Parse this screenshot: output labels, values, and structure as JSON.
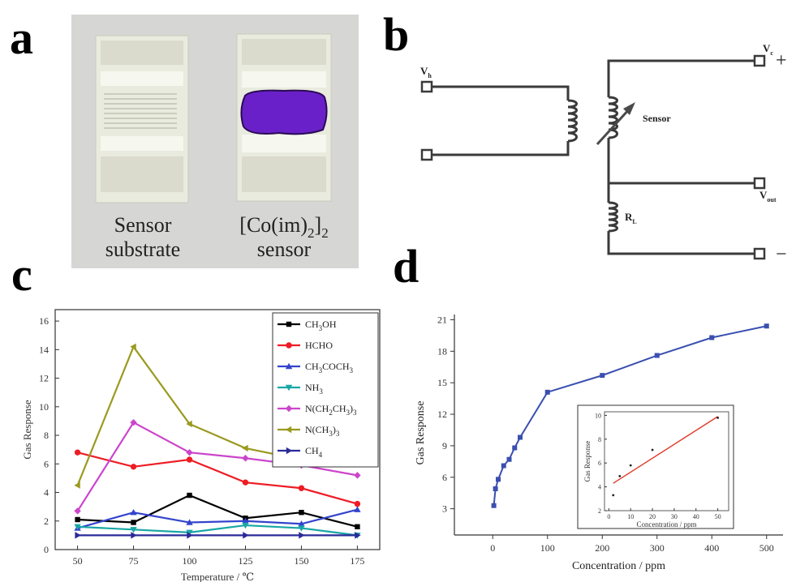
{
  "panels": {
    "a": "a",
    "b": "b",
    "c": "c",
    "d": "d"
  },
  "photo": {
    "left_caption": [
      "Sensor",
      "substrate"
    ],
    "right_caption_main": "[Co(im)",
    "right_caption_sub1": "2",
    "right_caption_close": "]",
    "right_caption_sub2": "2",
    "right_caption_line2": "sensor",
    "film_color": "#6a20c8"
  },
  "circuit": {
    "vh_label": "V",
    "vh_sub": "h",
    "vc_label": "V",
    "vc_sub": "c",
    "plus": "+",
    "minus": "−",
    "sensor_label": "Sensor",
    "vout_label": "V",
    "vout_sub": "out",
    "rl_label": "R",
    "rl_sub": "L"
  },
  "chart_data": [
    {
      "type": "line",
      "xlabel": "Temperature / ℃",
      "ylabel": "Gas Response",
      "xlim": [
        40,
        185
      ],
      "ylim": [
        0,
        16.8
      ],
      "x_ticks": [
        50,
        75,
        100,
        125,
        150,
        175
      ],
      "y_ticks": [
        0,
        2,
        4,
        6,
        8,
        10,
        12,
        14,
        16
      ],
      "legend_position": "top-right",
      "series": [
        {
          "name": "CH3OH",
          "color": "#000000",
          "marker": "square",
          "x": [
            50,
            75,
            100,
            125,
            150,
            175
          ],
          "values": [
            2.1,
            1.9,
            3.8,
            2.2,
            2.6,
            1.6
          ]
        },
        {
          "name": "HCHO",
          "color": "#ee1c24",
          "marker": "circle",
          "x": [
            50,
            75,
            100,
            125,
            150,
            175
          ],
          "values": [
            6.8,
            5.8,
            6.3,
            4.7,
            4.3,
            3.2
          ]
        },
        {
          "name": "CH3COCH3",
          "color": "#3344cc",
          "marker": "triangle",
          "x": [
            50,
            75,
            100,
            125,
            150,
            175
          ],
          "values": [
            1.5,
            2.6,
            1.9,
            2.0,
            1.8,
            2.8
          ]
        },
        {
          "name": "NH3",
          "color": "#1aa6a6",
          "marker": "triangle-down",
          "x": [
            50,
            75,
            100,
            125,
            150,
            175
          ],
          "values": [
            1.6,
            1.4,
            1.2,
            1.7,
            1.5,
            1.0
          ]
        },
        {
          "name": "N(CH2CH3)3",
          "color": "#cc44cc",
          "marker": "diamond",
          "x": [
            50,
            75,
            100,
            125,
            150,
            175
          ],
          "values": [
            2.7,
            8.9,
            6.8,
            6.4,
            5.9,
            5.2
          ]
        },
        {
          "name": "N(CH3)3",
          "color": "#9a9a20",
          "marker": "triangle-left",
          "x": [
            50,
            75,
            100,
            125,
            150,
            175
          ],
          "values": [
            4.5,
            14.2,
            8.8,
            7.1,
            6.3,
            6.2
          ]
        },
        {
          "name": "CH4",
          "color": "#2a2a99",
          "marker": "triangle-right",
          "x": [
            50,
            75,
            100,
            125,
            150,
            175
          ],
          "values": [
            1.0,
            1.0,
            1.0,
            1.0,
            1.0,
            1.0
          ]
        }
      ],
      "legend_parts": [
        {
          "pre": "CH",
          "sub": "3",
          "post": "OH"
        },
        {
          "pre": "HCHO"
        },
        {
          "pre": "CH",
          "sub": "3",
          "post": "COCH",
          "sub2": "3"
        },
        {
          "pre": "NH",
          "sub": "3"
        },
        {
          "pre": "N(CH",
          "sub": "2",
          "post": "CH",
          "sub2": "3",
          "post2": ")",
          "sub3": "3"
        },
        {
          "pre": "N(CH",
          "sub": "3",
          "post": ")",
          "sub2": "3"
        },
        {
          "pre": "CH",
          "sub": "4"
        }
      ]
    },
    {
      "type": "line",
      "xlabel": "Concentration / ppm",
      "ylabel": "Gas Response",
      "xlim": [
        -70,
        530
      ],
      "ylim": [
        0.5,
        21.5
      ],
      "x_ticks": [
        0,
        100,
        200,
        300,
        400,
        500
      ],
      "y_ticks": [
        3,
        6,
        9,
        12,
        15,
        18,
        21
      ],
      "series": [
        {
          "color": "#3a4fb0",
          "marker": "square",
          "x": [
            2,
            5,
            10,
            20,
            30,
            40,
            50,
            100,
            200,
            300,
            400,
            500
          ],
          "values": [
            3.3,
            4.9,
            5.8,
            7.1,
            7.7,
            8.8,
            9.8,
            14.1,
            15.7,
            17.6,
            19.3,
            20.4
          ]
        }
      ]
    },
    {
      "type": "scatter",
      "xlabel": "Concentration / ppm",
      "ylabel": "Gas Response",
      "xlim": [
        -2,
        55
      ],
      "ylim": [
        2,
        10.3
      ],
      "x_ticks": [
        0,
        10,
        20,
        30,
        40,
        50
      ],
      "y_ticks": [
        2,
        4,
        6,
        8,
        10
      ],
      "points": {
        "x": [
          2,
          5,
          10,
          20,
          50
        ],
        "values": [
          3.3,
          4.9,
          5.8,
          7.1,
          9.8
        ]
      },
      "fit": {
        "color": "#e03a2a",
        "x": [
          2,
          50
        ],
        "values": [
          4.3,
          9.9
        ]
      }
    }
  ]
}
